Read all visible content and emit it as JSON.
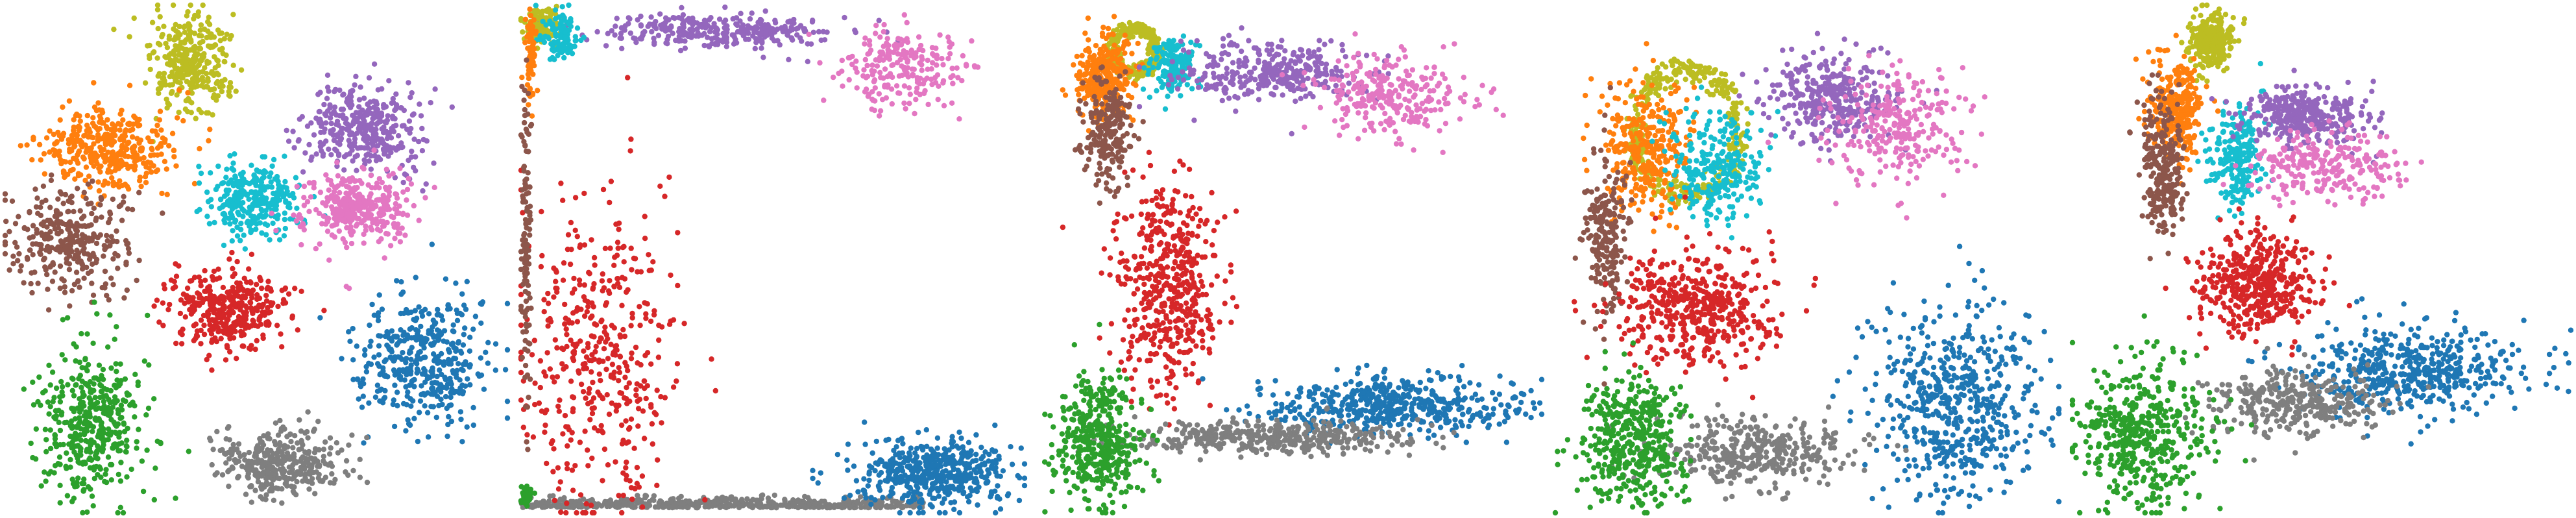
{
  "palette": {
    "blue": "#1f77b4",
    "orange": "#ff7f0e",
    "green": "#2ca02c",
    "red": "#d62728",
    "purple": "#9467bd",
    "brown": "#8c564b",
    "pink": "#e377c2",
    "gray": "#7f7f7f",
    "olive": "#bcbd22",
    "cyan": "#17becf"
  },
  "chart_data": [
    {
      "type": "scatter",
      "title": "",
      "axes_visible": false,
      "xlim": [
        0,
        100
      ],
      "ylim": [
        0,
        100
      ],
      "clusters": [
        {
          "color": "olive",
          "center": [
            37,
            88
          ],
          "spread": [
            7,
            9
          ],
          "count": 320,
          "shape": "blob"
        },
        {
          "color": "orange",
          "center": [
            20,
            72
          ],
          "spread": [
            12,
            7
          ],
          "count": 380,
          "shape": "blob"
        },
        {
          "color": "purple",
          "center": [
            72,
            76
          ],
          "spread": [
            10,
            8
          ],
          "count": 360,
          "shape": "blob"
        },
        {
          "color": "cyan",
          "center": [
            49,
            62
          ],
          "spread": [
            8,
            7
          ],
          "count": 300,
          "shape": "blob"
        },
        {
          "color": "pink",
          "center": [
            70,
            60
          ],
          "spread": [
            10,
            7
          ],
          "count": 340,
          "shape": "blob"
        },
        {
          "color": "brown",
          "center": [
            13,
            54
          ],
          "spread": [
            10,
            9
          ],
          "count": 320,
          "shape": "blob"
        },
        {
          "color": "red",
          "center": [
            45,
            40
          ],
          "spread": [
            11,
            7
          ],
          "count": 360,
          "shape": "blob"
        },
        {
          "color": "blue",
          "center": [
            83,
            30
          ],
          "spread": [
            12,
            11
          ],
          "count": 420,
          "shape": "blob"
        },
        {
          "color": "green",
          "center": [
            17,
            17
          ],
          "spread": [
            9,
            14
          ],
          "count": 420,
          "shape": "blob"
        },
        {
          "color": "gray",
          "center": [
            55,
            10
          ],
          "spread": [
            11,
            6
          ],
          "count": 360,
          "shape": "blob"
        }
      ]
    },
    {
      "type": "scatter",
      "title": "",
      "axes_visible": false,
      "xlim": [
        0,
        100
      ],
      "ylim": [
        0,
        100
      ],
      "clusters": [
        {
          "color": "gray",
          "center": [
            40,
            1
          ],
          "spread": [
            40,
            1
          ],
          "count": 520,
          "shape": "band"
        },
        {
          "color": "blue",
          "center": [
            82,
            8
          ],
          "spread": [
            14,
            6
          ],
          "count": 480,
          "shape": "blob"
        },
        {
          "color": "red",
          "center": [
            15,
            30
          ],
          "spread": [
            14,
            28
          ],
          "count": 430,
          "shape": "blob"
        },
        {
          "color": "purple",
          "center": [
            40,
            95
          ],
          "spread": [
            22,
            3
          ],
          "count": 300,
          "shape": "blob"
        },
        {
          "color": "pink",
          "center": [
            75,
            88
          ],
          "spread": [
            12,
            8
          ],
          "count": 230,
          "shape": "blob"
        },
        {
          "color": "olive",
          "center": [
            4,
            96
          ],
          "spread": [
            3,
            3
          ],
          "count": 120,
          "shape": "blob"
        },
        {
          "color": "cyan",
          "center": [
            8,
            94
          ],
          "spread": [
            3,
            4
          ],
          "count": 120,
          "shape": "blob"
        },
        {
          "color": "orange",
          "center": [
            2,
            90
          ],
          "spread": [
            1,
            8
          ],
          "count": 90,
          "shape": "blob"
        },
        {
          "color": "brown",
          "center": [
            1,
            55
          ],
          "spread": [
            1,
            30
          ],
          "count": 120,
          "shape": "blob"
        },
        {
          "color": "green",
          "center": [
            1,
            3
          ],
          "spread": [
            1,
            2
          ],
          "count": 50,
          "shape": "blob"
        }
      ]
    },
    {
      "type": "scatter",
      "title": "",
      "axes_visible": false,
      "xlim": [
        0,
        100
      ],
      "ylim": [
        0,
        100
      ],
      "clusters": [
        {
          "color": "olive",
          "center": [
            19,
            91
          ],
          "spread": [
            5,
            5
          ],
          "count": 300,
          "shape": "ring"
        },
        {
          "color": "orange",
          "center": [
            13,
            86
          ],
          "spread": [
            5,
            7
          ],
          "count": 300,
          "shape": "blob"
        },
        {
          "color": "cyan",
          "center": [
            27,
            88
          ],
          "spread": [
            4,
            5
          ],
          "count": 160,
          "shape": "blob"
        },
        {
          "color": "brown",
          "center": [
            14,
            75
          ],
          "spread": [
            4,
            10
          ],
          "count": 220,
          "shape": "blob"
        },
        {
          "color": "purple",
          "center": [
            45,
            87
          ],
          "spread": [
            16,
            5
          ],
          "count": 330,
          "shape": "blob"
        },
        {
          "color": "pink",
          "center": [
            70,
            82
          ],
          "spread": [
            14,
            7
          ],
          "count": 260,
          "shape": "blob"
        },
        {
          "color": "red",
          "center": [
            26,
            45
          ],
          "spread": [
            9,
            18
          ],
          "count": 500,
          "shape": "blob"
        },
        {
          "color": "blue",
          "center": [
            70,
            21
          ],
          "spread": [
            24,
            5
          ],
          "count": 500,
          "shape": "blob"
        },
        {
          "color": "gray",
          "center": [
            45,
            15
          ],
          "spread": [
            26,
            3
          ],
          "count": 400,
          "shape": "blob"
        },
        {
          "color": "green",
          "center": [
            12,
            14
          ],
          "spread": [
            8,
            11
          ],
          "count": 420,
          "shape": "blob"
        }
      ]
    },
    {
      "type": "scatter",
      "title": "",
      "axes_visible": false,
      "xlim": [
        0,
        100
      ],
      "ylim": [
        0,
        100
      ],
      "clusters": [
        {
          "color": "olive",
          "center": [
            26,
            75
          ],
          "spread": [
            12,
            14
          ],
          "count": 360,
          "shape": "ring"
        },
        {
          "color": "orange",
          "center": [
            18,
            72
          ],
          "spread": [
            8,
            12
          ],
          "count": 320,
          "shape": "blob"
        },
        {
          "color": "cyan",
          "center": [
            32,
            68
          ],
          "spread": [
            8,
            10
          ],
          "count": 260,
          "shape": "blob"
        },
        {
          "color": "brown",
          "center": [
            10,
            55
          ],
          "spread": [
            4,
            14
          ],
          "count": 220,
          "shape": "blob"
        },
        {
          "color": "purple",
          "center": [
            55,
            82
          ],
          "spread": [
            12,
            8
          ],
          "count": 340,
          "shape": "blob"
        },
        {
          "color": "pink",
          "center": [
            68,
            76
          ],
          "spread": [
            12,
            10
          ],
          "count": 260,
          "shape": "blob"
        },
        {
          "color": "red",
          "center": [
            28,
            40
          ],
          "spread": [
            14,
            10
          ],
          "count": 480,
          "shape": "blob"
        },
        {
          "color": "blue",
          "center": [
            80,
            22
          ],
          "spread": [
            15,
            18
          ],
          "count": 560,
          "shape": "blob"
        },
        {
          "color": "gray",
          "center": [
            40,
            12
          ],
          "spread": [
            18,
            6
          ],
          "count": 360,
          "shape": "blob"
        },
        {
          "color": "green",
          "center": [
            15,
            14
          ],
          "spread": [
            10,
            12
          ],
          "count": 440,
          "shape": "blob"
        }
      ]
    },
    {
      "type": "scatter",
      "title": "",
      "axes_visible": false,
      "xlim": [
        0,
        100
      ],
      "ylim": [
        0,
        100
      ],
      "clusters": [
        {
          "color": "olive",
          "center": [
            28,
            93
          ],
          "spread": [
            4,
            5
          ],
          "count": 260,
          "shape": "blob"
        },
        {
          "color": "orange",
          "center": [
            21,
            80
          ],
          "spread": [
            5,
            9
          ],
          "count": 300,
          "shape": "blob"
        },
        {
          "color": "brown",
          "center": [
            18,
            68
          ],
          "spread": [
            4,
            12
          ],
          "count": 260,
          "shape": "blob"
        },
        {
          "color": "cyan",
          "center": [
            33,
            70
          ],
          "spread": [
            5,
            9
          ],
          "count": 220,
          "shape": "blob"
        },
        {
          "color": "purple",
          "center": [
            47,
            78
          ],
          "spread": [
            12,
            5
          ],
          "count": 320,
          "shape": "blob"
        },
        {
          "color": "pink",
          "center": [
            52,
            68
          ],
          "spread": [
            14,
            6
          ],
          "count": 240,
          "shape": "blob"
        },
        {
          "color": "red",
          "center": [
            37,
            45
          ],
          "spread": [
            10,
            9
          ],
          "count": 460,
          "shape": "blob"
        },
        {
          "color": "blue",
          "center": [
            68,
            28
          ],
          "spread": [
            22,
            8
          ],
          "count": 500,
          "shape": "blob"
        },
        {
          "color": "gray",
          "center": [
            44,
            22
          ],
          "spread": [
            16,
            6
          ],
          "count": 340,
          "shape": "blob"
        },
        {
          "color": "green",
          "center": [
            14,
            16
          ],
          "spread": [
            12,
            14
          ],
          "count": 460,
          "shape": "blob"
        }
      ]
    }
  ]
}
